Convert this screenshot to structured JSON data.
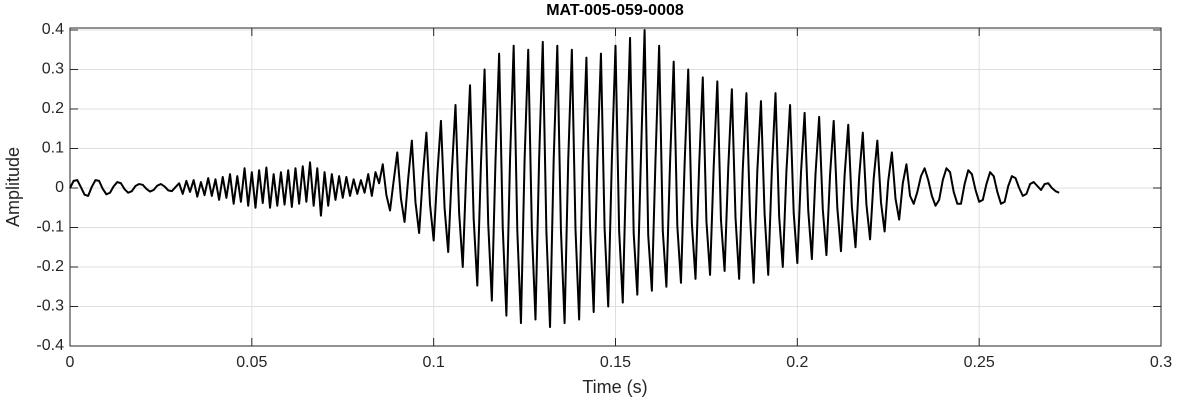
{
  "chart_data": {
    "type": "line",
    "title": "MAT-005-059-0008",
    "x_label": "Time (s)",
    "y_label": "Amplitude",
    "color": "#000000",
    "grid": true,
    "xlim": [
      0,
      0.3
    ],
    "xticks": [
      0,
      0.05,
      0.1,
      0.15,
      0.2,
      0.25,
      0.3
    ],
    "ylim": [
      -0.4,
      0.405
    ],
    "yticks": [
      -0.4,
      -0.3,
      -0.2,
      -0.1,
      0,
      0.1,
      0.2,
      0.3,
      0.4
    ],
    "x": [
      0,
      0.001,
      0.002,
      0.003,
      0.004,
      0.005,
      0.006,
      0.007,
      0.008,
      0.009,
      0.01,
      0.011,
      0.012,
      0.013,
      0.014,
      0.015,
      0.016,
      0.017,
      0.018,
      0.019,
      0.02,
      0.021,
      0.022,
      0.023,
      0.024,
      0.025,
      0.026,
      0.027,
      0.028,
      0.029,
      0.03,
      0.031,
      0.032,
      0.033,
      0.034,
      0.035,
      0.036,
      0.037,
      0.038,
      0.039,
      0.04,
      0.041,
      0.042,
      0.043,
      0.044,
      0.045,
      0.046,
      0.047,
      0.048,
      0.049,
      0.05,
      0.051,
      0.052,
      0.053,
      0.054,
      0.055,
      0.056,
      0.057,
      0.058,
      0.059,
      0.06,
      0.061,
      0.062,
      0.063,
      0.064,
      0.065,
      0.066,
      0.067,
      0.068,
      0.069,
      0.07,
      0.071,
      0.072,
      0.073,
      0.074,
      0.075,
      0.076,
      0.077,
      0.078,
      0.079,
      0.08,
      0.081,
      0.082,
      0.083,
      0.084,
      0.085,
      0.086,
      0.087,
      0.088,
      0.089,
      0.09,
      0.091,
      0.092,
      0.093,
      0.094,
      0.095,
      0.096,
      0.097,
      0.098,
      0.099,
      0.1,
      0.101,
      0.102,
      0.103,
      0.104,
      0.105,
      0.106,
      0.107,
      0.108,
      0.109,
      0.11,
      0.111,
      0.112,
      0.113,
      0.114,
      0.115,
      0.116,
      0.117,
      0.118,
      0.119,
      0.12,
      0.121,
      0.122,
      0.123,
      0.124,
      0.125,
      0.126,
      0.127,
      0.128,
      0.129,
      0.13,
      0.131,
      0.132,
      0.133,
      0.134,
      0.135,
      0.136,
      0.137,
      0.138,
      0.139,
      0.14,
      0.141,
      0.142,
      0.143,
      0.144,
      0.145,
      0.146,
      0.147,
      0.148,
      0.149,
      0.15,
      0.151,
      0.152,
      0.153,
      0.154,
      0.155,
      0.156,
      0.157,
      0.158,
      0.159,
      0.16,
      0.161,
      0.162,
      0.163,
      0.164,
      0.165,
      0.166,
      0.167,
      0.168,
      0.169,
      0.17,
      0.171,
      0.172,
      0.173,
      0.174,
      0.175,
      0.176,
      0.177,
      0.178,
      0.179,
      0.18,
      0.181,
      0.182,
      0.183,
      0.184,
      0.185,
      0.186,
      0.187,
      0.188,
      0.189,
      0.19,
      0.191,
      0.192,
      0.193,
      0.194,
      0.195,
      0.196,
      0.197,
      0.198,
      0.199,
      0.2,
      0.201,
      0.202,
      0.203,
      0.204,
      0.205,
      0.206,
      0.207,
      0.208,
      0.209,
      0.21,
      0.211,
      0.212,
      0.213,
      0.214,
      0.215,
      0.216,
      0.217,
      0.218,
      0.219,
      0.22,
      0.221,
      0.222,
      0.223,
      0.224,
      0.225,
      0.226,
      0.227,
      0.228,
      0.229,
      0.23,
      0.231,
      0.232,
      0.233,
      0.234,
      0.235,
      0.236,
      0.237,
      0.238,
      0.239,
      0.24,
      0.241,
      0.242,
      0.243,
      0.244,
      0.245,
      0.246,
      0.247,
      0.248,
      0.249,
      0.25,
      0.251,
      0.252,
      0.253,
      0.254,
      0.255,
      0.256,
      0.257,
      0.258,
      0.259,
      0.26,
      0.261,
      0.262,
      0.263,
      0.264,
      0.265,
      0.266,
      0.267,
      0.268,
      0.269,
      0.27,
      0.271,
      0.272
    ],
    "values": [
      0,
      0.018,
      0.02,
      0.002,
      -0.017,
      -0.02,
      0.003,
      0.02,
      0.018,
      -0.002,
      -0.016,
      -0.012,
      0.004,
      0.015,
      0.012,
      -0.003,
      -0.012,
      -0.008,
      0.005,
      0.01,
      0.008,
      -0.002,
      -0.009,
      -0.005,
      0.006,
      0.01,
      0.004,
      -0.006,
      -0.008,
      0.002,
      0.012,
      -0.015,
      0.018,
      -0.01,
      0.02,
      -0.022,
      0.015,
      -0.018,
      0.025,
      -0.02,
      0.022,
      -0.03,
      0.028,
      -0.025,
      0.035,
      -0.04,
      0.03,
      -0.035,
      0.05,
      -0.045,
      0.04,
      -0.05,
      0.045,
      -0.038,
      0.052,
      -0.05,
      0.035,
      -0.045,
      0.04,
      -0.042,
      0.045,
      -0.048,
      0.05,
      -0.04,
      0.055,
      -0.035,
      0.065,
      -0.045,
      0.05,
      -0.07,
      0.04,
      -0.045,
      0.035,
      -0.03,
      0.03,
      -0.025,
      0.028,
      -0.02,
      0.022,
      -0.015,
      0.02,
      -0.012,
      0.035,
      -0.02,
      0.04,
      0.012,
      0.06,
      -0.018,
      -0.057,
      0.018,
      0.09,
      -0.027,
      -0.086,
      0.024,
      0.12,
      -0.036,
      -0.114,
      0.028,
      0.14,
      -0.042,
      -0.133,
      0.034,
      0.17,
      -0.051,
      -0.162,
      0.042,
      0.21,
      -0.063,
      -0.2,
      0.052,
      0.26,
      -0.078,
      -0.247,
      0.06,
      0.3,
      -0.09,
      -0.285,
      0.068,
      0.34,
      -0.102,
      -0.323,
      0.072,
      0.36,
      -0.108,
      -0.342,
      0.07,
      0.35,
      -0.105,
      -0.333,
      0.074,
      0.37,
      -0.111,
      -0.352,
      0.072,
      0.36,
      -0.108,
      -0.342,
      0.07,
      0.35,
      -0.105,
      -0.333,
      0.066,
      0.33,
      -0.099,
      -0.314,
      0.068,
      0.34,
      -0.102,
      -0.3,
      0.072,
      0.36,
      -0.108,
      -0.29,
      0.076,
      0.38,
      -0.114,
      -0.27,
      0.08,
      0.4,
      -0.12,
      -0.26,
      0.072,
      0.36,
      -0.108,
      -0.25,
      0.064,
      0.32,
      -0.096,
      -0.24,
      0.06,
      0.3,
      -0.09,
      -0.23,
      0.056,
      0.28,
      -0.084,
      -0.22,
      0.054,
      0.27,
      -0.081,
      -0.21,
      0.05,
      0.25,
      -0.075,
      -0.23,
      0.048,
      0.24,
      -0.072,
      -0.24,
      0.044,
      0.22,
      -0.066,
      -0.22,
      0.048,
      0.24,
      -0.072,
      -0.2,
      0.042,
      0.21,
      -0.063,
      -0.19,
      0.038,
      0.19,
      -0.057,
      -0.18,
      0.036,
      0.18,
      -0.054,
      -0.17,
      0.034,
      0.17,
      -0.051,
      -0.16,
      0.032,
      0.16,
      -0.048,
      -0.15,
      0.028,
      0.14,
      -0.042,
      -0.13,
      0.024,
      0.12,
      -0.036,
      -0.11,
      0.018,
      0.09,
      -0.027,
      -0.08,
      0.012,
      0.06,
      -0.02,
      -0.04,
      -0.01,
      0.03,
      0.05,
      0.02,
      -0.02,
      -0.045,
      -0.03,
      0.02,
      0.05,
      0.04,
      -0.01,
      -0.04,
      -0.04,
      0.01,
      0.045,
      0.035,
      -0.005,
      -0.035,
      -0.03,
      0.01,
      0.04,
      0.03,
      -0.01,
      -0.04,
      -0.035,
      0.005,
      0.03,
      0.025,
      0,
      -0.02,
      -0.015,
      0.01,
      0.015,
      0.005,
      -0.005,
      0.01,
      0.012,
      0,
      -0.008,
      -0.012
    ]
  }
}
